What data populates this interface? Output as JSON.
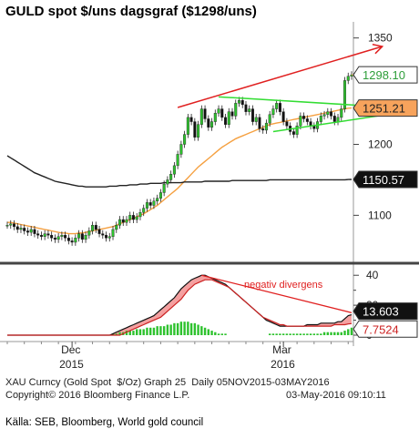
{
  "title": "GULD spot $/uns dagsgraf ($1298/uns)",
  "chart_data": [
    {
      "type": "line",
      "panel": "price",
      "ylim": [
        1035,
        1365
      ],
      "yticks": [
        1100,
        1150,
        1200,
        1250,
        1300,
        1350
      ],
      "ytick_labels": [
        "1100",
        "",
        "1200",
        "",
        "",
        "1350"
      ],
      "price_tags": [
        {
          "label": "1298.10",
          "value": 1298.1,
          "color": "#2e9e3a",
          "fill": "#ffffff"
        },
        {
          "label": "1251.21",
          "value": 1251.21,
          "color": "#222222",
          "fill": "#f7a35c"
        },
        {
          "label": "1150.57",
          "value": 1150.57,
          "color": "#ffffff",
          "fill": "#111111"
        }
      ],
      "x_labels": [
        {
          "month": "Dec",
          "year": "2015",
          "index": 19
        },
        {
          "month": "Mar",
          "year": "2016",
          "index": 81
        }
      ],
      "candles_close": [
        1086,
        1088,
        1084,
        1080,
        1082,
        1078,
        1076,
        1080,
        1074,
        1072,
        1070,
        1074,
        1072,
        1068,
        1066,
        1070,
        1072,
        1068,
        1064,
        1062,
        1068,
        1074,
        1066,
        1072,
        1078,
        1086,
        1080,
        1074,
        1072,
        1068,
        1070,
        1080,
        1086,
        1094,
        1090,
        1094,
        1100,
        1094,
        1098,
        1104,
        1110,
        1118,
        1114,
        1120,
        1124,
        1132,
        1144,
        1150,
        1158,
        1170,
        1186,
        1200,
        1214,
        1238,
        1232,
        1210,
        1228,
        1250,
        1236,
        1224,
        1232,
        1244,
        1250,
        1238,
        1228,
        1246,
        1240,
        1258,
        1262,
        1256,
        1246,
        1250,
        1232,
        1238,
        1222,
        1220,
        1230,
        1242,
        1250,
        1258,
        1246,
        1232,
        1226,
        1218,
        1214,
        1226,
        1240,
        1236,
        1232,
        1226,
        1222,
        1232,
        1240,
        1242,
        1246,
        1240,
        1232,
        1238,
        1250,
        1290,
        1296,
        1298
      ],
      "series": [
        {
          "name": "",
          "values": [
            1090,
            1090,
            1089,
            1088,
            1087,
            1086,
            1085,
            1084,
            1083,
            1082,
            1081,
            1080,
            1079,
            1078,
            1077,
            1076,
            1075,
            1075,
            1074,
            1074,
            1074,
            1075,
            1075,
            1076,
            1077,
            1078,
            1079,
            1080,
            1081,
            1082,
            1083,
            1084,
            1086,
            1088,
            1090,
            1092,
            1094,
            1096,
            1098,
            1100,
            1102,
            1105,
            1108,
            1111,
            1114,
            1118,
            1122,
            1126,
            1130,
            1134,
            1138,
            1143,
            1148,
            1153,
            1158,
            1163,
            1168,
            1172,
            1176,
            1180,
            1184,
            1188,
            1192,
            1196,
            1199,
            1202,
            1205,
            1208,
            1210,
            1212,
            1214,
            1216,
            1218,
            1220,
            1222,
            1224,
            1226,
            1228,
            1229,
            1230,
            1231,
            1232,
            1233,
            1234,
            1235,
            1236,
            1237,
            1238,
            1239,
            1240,
            1241,
            1242,
            1243,
            1244,
            1245,
            1246,
            1247,
            1248,
            1249,
            1250,
            1251,
            1251.2
          ],
          "color": "#f5a040"
        },
        {
          "name": "",
          "values": [
            1184,
            1181,
            1178,
            1175,
            1172,
            1169,
            1166,
            1163,
            1160,
            1158,
            1156,
            1154,
            1152,
            1150,
            1148,
            1147,
            1146,
            1145,
            1144,
            1143,
            1142,
            1141,
            1141,
            1140,
            1140,
            1140,
            1140,
            1140,
            1140,
            1140,
            1141,
            1141,
            1141,
            1142,
            1142,
            1142,
            1143,
            1143,
            1143,
            1144,
            1144,
            1144,
            1145,
            1145,
            1145,
            1145,
            1146,
            1146,
            1146,
            1146,
            1146,
            1146,
            1147,
            1147,
            1147,
            1147,
            1147,
            1147,
            1148,
            1148,
            1148,
            1148,
            1148,
            1148,
            1148,
            1148,
            1149,
            1149,
            1149,
            1149,
            1149,
            1149,
            1149,
            1149,
            1149,
            1149,
            1149,
            1150,
            1150,
            1150,
            1150,
            1150,
            1150,
            1150,
            1150,
            1150,
            1150,
            1150,
            1150,
            1150,
            1150,
            1150,
            1150,
            1150,
            1150,
            1150,
            1150,
            1150,
            1150,
            1150,
            1150.5,
            1150.57
          ],
          "color": "#222222"
        }
      ],
      "trendlines": [
        {
          "from": [
            50,
            1252
          ],
          "to": [
            110,
            1338
          ],
          "color": "#e02020",
          "arrow": true
        },
        {
          "from": [
            62,
            1267
          ],
          "to": [
            110,
            1253
          ],
          "color": "#33dd33"
        },
        {
          "from": [
            78,
            1218
          ],
          "to": [
            110,
            1241
          ],
          "color": "#33dd33"
        }
      ]
    },
    {
      "type": "area",
      "panel": "indicator",
      "ylim": [
        0,
        45
      ],
      "yticks": [
        0,
        20,
        40
      ],
      "ytick_labels": [
        "0",
        "20",
        "40"
      ],
      "price_tags": [
        {
          "label": "13.603",
          "value": 13.603,
          "color": "#ffffff",
          "fill": "#111111"
        },
        {
          "label": "7.7524",
          "value": 7.7524,
          "color": "#cc2222",
          "fill": "#ffffff"
        }
      ],
      "annotation": "negativ divergens",
      "series": [
        {
          "name": "",
          "color": "#111111",
          "values": [
            0,
            0,
            0,
            0,
            0,
            0,
            0,
            0,
            0,
            0,
            0,
            0,
            0,
            0,
            0,
            0,
            0,
            0,
            0,
            0,
            0,
            0,
            0,
            0,
            0,
            0,
            0,
            0,
            0,
            0,
            0,
            1,
            2,
            3,
            4,
            5,
            6,
            7,
            8,
            9,
            10,
            11,
            12,
            13,
            15,
            17,
            19,
            21,
            23,
            25,
            28,
            31,
            33,
            35,
            37,
            38,
            39,
            40,
            40,
            39,
            38,
            37,
            36,
            35,
            34,
            32,
            30,
            28,
            26,
            24,
            22,
            20,
            18,
            16,
            14,
            12,
            10,
            9,
            8,
            7,
            6,
            6,
            6,
            6,
            6,
            6,
            6,
            6,
            7,
            7,
            7,
            7,
            8,
            8,
            8,
            8,
            8,
            9,
            9,
            11,
            13,
            13.6
          ]
        },
        {
          "name": "",
          "color": "#cc2222",
          "values": [
            0,
            0,
            0,
            0,
            0,
            0,
            0,
            0,
            0,
            0,
            0,
            0,
            0,
            0,
            0,
            0,
            0,
            0,
            0,
            0,
            0,
            0,
            0,
            0,
            0,
            0,
            0,
            0,
            0,
            0,
            0,
            0,
            0,
            0,
            1,
            2,
            3,
            4,
            5,
            6,
            7,
            8,
            9,
            10,
            11,
            12,
            14,
            16,
            18,
            20,
            22,
            24,
            27,
            30,
            32,
            34,
            35,
            36,
            37,
            37,
            37,
            36,
            35,
            34,
            33,
            32,
            30,
            28,
            26,
            24,
            22,
            20,
            18,
            16,
            14,
            12,
            11,
            10,
            9,
            8,
            7,
            7,
            6,
            6,
            6,
            6,
            6,
            6,
            6,
            6,
            6,
            6,
            6,
            6,
            6,
            6,
            7,
            7,
            7,
            7,
            7.5,
            7.75
          ]
        },
        {
          "name": "",
          "color": "#2ec22e",
          "values": [
            0,
            0,
            0,
            0,
            0,
            0,
            0,
            0,
            0,
            0,
            0,
            0,
            0,
            0,
            0,
            0,
            0,
            0,
            0,
            0,
            0,
            0,
            0,
            0,
            0,
            0,
            0,
            0,
            0,
            0,
            0,
            1,
            1,
            2,
            2,
            3,
            3,
            3,
            4,
            4,
            4,
            5,
            5,
            5,
            6,
            6,
            6,
            7,
            7,
            8,
            8,
            9,
            9,
            9,
            8,
            8,
            7,
            6,
            5,
            4,
            3,
            2,
            1,
            1,
            1,
            0,
            0,
            0,
            0,
            0,
            0,
            0,
            0,
            0,
            0,
            0,
            0,
            1,
            1,
            1,
            1,
            1,
            1,
            1,
            1,
            1,
            1,
            1,
            1,
            1,
            1,
            1,
            1,
            2,
            2,
            2,
            2,
            2,
            2,
            3,
            4,
            5
          ]
        }
      ],
      "divergence_line": {
        "from": [
          57,
          40
        ],
        "to": [
          101,
          15
        ],
        "color": "#e02020"
      }
    }
  ],
  "footer": {
    "line1": "XAU Curncy (Gold Spot  $/Oz) Graph 25  Daily 05NOV2015-03MAY2016",
    "line2_left": "Copyright© 2016 Bloomberg Finance L.P.",
    "line2_right": "03-May-2016 09:10:11"
  },
  "source": "Källa: SEB, Bloomberg, World gold council"
}
